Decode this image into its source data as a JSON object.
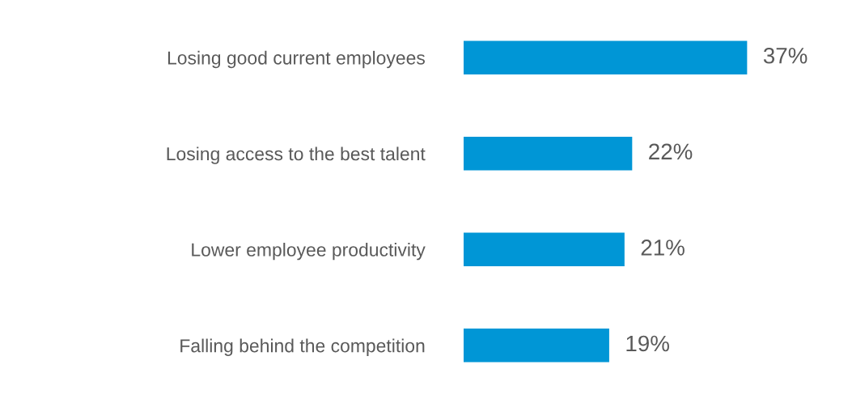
{
  "chart_data": {
    "type": "bar",
    "orientation": "horizontal",
    "categories": [
      "Losing good current employees",
      "Losing access to the best talent",
      "Lower employee productivity",
      "Falling behind the competition"
    ],
    "values": [
      37,
      22,
      21,
      19
    ],
    "value_labels": [
      "37%",
      "22%",
      "21%",
      "19%"
    ],
    "color": "#0096d6",
    "grid": false,
    "legend": false
  }
}
